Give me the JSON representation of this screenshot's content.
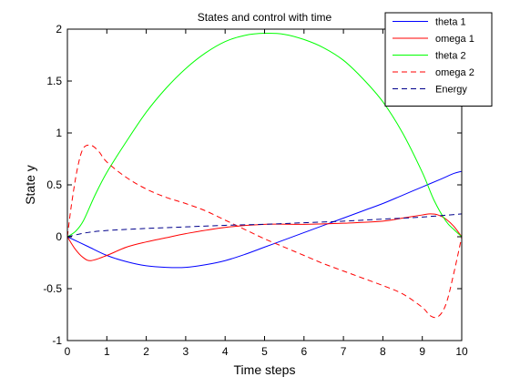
{
  "chart_data": {
    "type": "line",
    "title": "States and control with time",
    "xlabel": "Time steps",
    "ylabel": "State y",
    "xlim": [
      0,
      10
    ],
    "ylim": [
      -1,
      2
    ],
    "xticks": [
      0,
      1,
      2,
      3,
      4,
      5,
      6,
      7,
      8,
      9,
      10
    ],
    "yticks": [
      -1,
      -0.5,
      0,
      0.5,
      1,
      1.5,
      2
    ],
    "xtick_labels": [
      "0",
      "1",
      "2",
      "3",
      "4",
      "5",
      "6",
      "7",
      "8",
      "9",
      "10"
    ],
    "ytick_labels": [
      "-1",
      "-0.5",
      "0",
      "0.5",
      "1",
      "1.5",
      "2"
    ],
    "grid": false,
    "legend_position": "top-right",
    "series": [
      {
        "name": "theta 1",
        "color": "#0000ff",
        "dash": "solid",
        "x": [
          0,
          0.5,
          1,
          1.5,
          2,
          2.5,
          3,
          3.5,
          4,
          4.5,
          5,
          5.5,
          6,
          6.5,
          7,
          7.5,
          8,
          8.5,
          9,
          9.5,
          9.8,
          10
        ],
        "y": [
          0,
          -0.09,
          -0.18,
          -0.24,
          -0.28,
          -0.295,
          -0.295,
          -0.27,
          -0.23,
          -0.17,
          -0.1,
          -0.03,
          0.04,
          0.11,
          0.18,
          0.25,
          0.32,
          0.4,
          0.48,
          0.56,
          0.61,
          0.63
        ]
      },
      {
        "name": "omega 1",
        "color": "#ff0000",
        "dash": "solid",
        "x": [
          0,
          0.2,
          0.4,
          0.6,
          1,
          1.5,
          2,
          2.5,
          3,
          4,
          5,
          6,
          7,
          8,
          8.5,
          9,
          9.2,
          9.4,
          9.6,
          9.8,
          10
        ],
        "y": [
          0,
          -0.12,
          -0.2,
          -0.23,
          -0.18,
          -0.1,
          -0.05,
          -0.01,
          0.03,
          0.09,
          0.12,
          0.12,
          0.13,
          0.15,
          0.18,
          0.21,
          0.22,
          0.21,
          0.17,
          0.1,
          0
        ]
      },
      {
        "name": "theta 2",
        "color": "#00ff00",
        "dash": "solid",
        "x": [
          0,
          0.2,
          0.4,
          0.7,
          1,
          1.5,
          2,
          2.5,
          3,
          3.5,
          4,
          4.5,
          5,
          5.5,
          6,
          6.5,
          7,
          7.5,
          8,
          8.5,
          9,
          9.3,
          9.6,
          9.8,
          10
        ],
        "y": [
          0,
          0.05,
          0.15,
          0.4,
          0.62,
          0.92,
          1.2,
          1.43,
          1.62,
          1.77,
          1.88,
          1.94,
          1.96,
          1.95,
          1.9,
          1.82,
          1.7,
          1.52,
          1.3,
          1.0,
          0.62,
          0.35,
          0.15,
          0.07,
          0
        ]
      },
      {
        "name": "omega 2",
        "color": "#ff0000",
        "dash": "dashed",
        "x": [
          0,
          0.1,
          0.25,
          0.4,
          0.6,
          0.8,
          1,
          1.5,
          2,
          2.5,
          3,
          3.5,
          4,
          4.5,
          5,
          5.5,
          6,
          6.5,
          7,
          7.5,
          8,
          8.5,
          9,
          9.2,
          9.4,
          9.6,
          9.8,
          10
        ],
        "y": [
          0,
          0.3,
          0.65,
          0.85,
          0.88,
          0.82,
          0.72,
          0.57,
          0.46,
          0.38,
          0.32,
          0.25,
          0.16,
          0.07,
          -0.02,
          -0.1,
          -0.18,
          -0.26,
          -0.33,
          -0.4,
          -0.47,
          -0.55,
          -0.68,
          -0.76,
          -0.77,
          -0.65,
          -0.35,
          0
        ]
      },
      {
        "name": "Energy",
        "color": "#00008b",
        "dash": "dashed",
        "x": [
          0,
          0.5,
          1,
          2,
          3,
          4,
          5,
          6,
          7,
          8,
          9,
          10
        ],
        "y": [
          0.0,
          0.04,
          0.06,
          0.08,
          0.095,
          0.11,
          0.12,
          0.135,
          0.15,
          0.17,
          0.19,
          0.22
        ]
      }
    ]
  }
}
